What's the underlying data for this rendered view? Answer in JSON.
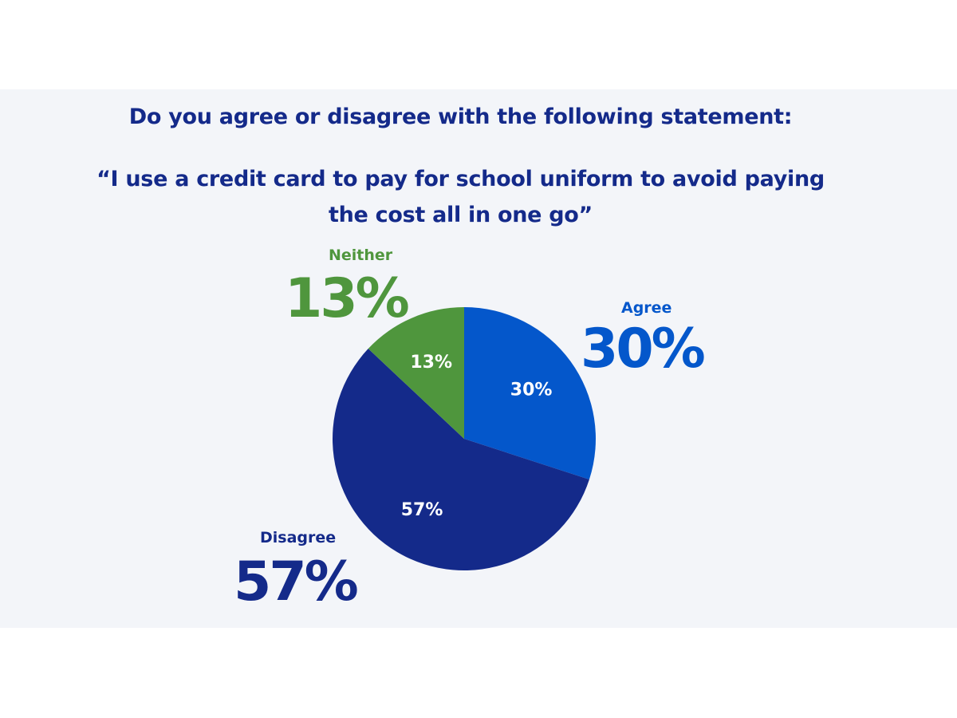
{
  "title": {
    "line1": "Do you agree or disagree with the following statement:",
    "line2": "“I use a credit card to pay for school uniform to avoid paying",
    "line3": "the cost all in one go”"
  },
  "callouts": {
    "neither": {
      "label": "Neither",
      "value": "13%"
    },
    "agree": {
      "label": "Agree",
      "value": "30%"
    },
    "disagree": {
      "label": "Disagree",
      "value": "57%"
    }
  },
  "colors": {
    "agree": "#0457cb",
    "disagree": "#142a8a",
    "neither": "#4f963d",
    "panel_background": "#f3f5f9"
  },
  "chart_data": {
    "type": "pie",
    "title": "Do you agree or disagree with the following statement: “I use a credit card to pay for school uniform to avoid paying the cost all in one go”",
    "slices": [
      {
        "name": "Agree",
        "value": 30,
        "label": "30%",
        "color": "#0457cb"
      },
      {
        "name": "Disagree",
        "value": 57,
        "label": "57%",
        "color": "#142a8a"
      },
      {
        "name": "Neither",
        "value": 13,
        "label": "13%",
        "color": "#4f963d"
      }
    ],
    "start": "top",
    "direction": "clockwise",
    "legend": "none"
  }
}
